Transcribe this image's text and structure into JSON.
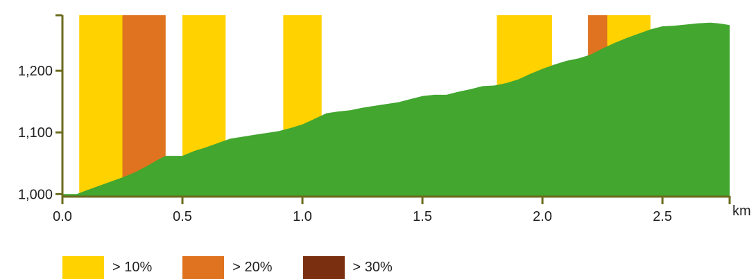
{
  "chart_data": {
    "type": "area",
    "x_unit": "km",
    "x_ticks": [
      0.0,
      0.5,
      1.0,
      1.5,
      2.0,
      2.5
    ],
    "x_tick_labels": [
      "0.0",
      "0.5",
      "1.0",
      "1.5",
      "2.0",
      "2.5"
    ],
    "y_ticks": [
      1000,
      1100,
      1200
    ],
    "y_tick_labels": [
      "1,000",
      "1,100",
      "1,200"
    ],
    "xlim": [
      0,
      2.78
    ],
    "ylim": [
      997,
      1290
    ],
    "elevation": {
      "x": [
        0.0,
        0.06,
        0.1,
        0.15,
        0.2,
        0.25,
        0.3,
        0.35,
        0.4,
        0.43,
        0.5,
        0.55,
        0.6,
        0.65,
        0.7,
        0.75,
        0.8,
        0.85,
        0.9,
        0.95,
        1.0,
        1.05,
        1.1,
        1.15,
        1.2,
        1.25,
        1.3,
        1.35,
        1.4,
        1.45,
        1.5,
        1.55,
        1.6,
        1.65,
        1.7,
        1.75,
        1.8,
        1.85,
        1.9,
        1.95,
        2.0,
        2.05,
        2.1,
        2.15,
        2.2,
        2.25,
        2.3,
        2.35,
        2.4,
        2.45,
        2.5,
        2.55,
        2.6,
        2.65,
        2.7,
        2.73,
        2.75,
        2.78
      ],
      "y": [
        1000,
        1000,
        1006,
        1013,
        1020,
        1027,
        1035,
        1045,
        1056,
        1062,
        1062,
        1070,
        1076,
        1083,
        1090,
        1093,
        1096,
        1099,
        1102,
        1107,
        1113,
        1122,
        1131,
        1134,
        1136,
        1140,
        1143,
        1146,
        1149,
        1154,
        1159,
        1161,
        1161,
        1166,
        1170,
        1175,
        1176,
        1180,
        1186,
        1195,
        1203,
        1210,
        1216,
        1220,
        1226,
        1236,
        1245,
        1253,
        1260,
        1267,
        1272,
        1273,
        1275,
        1277,
        1278,
        1277,
        1276,
        1274
      ]
    },
    "grade_segments": [
      {
        "from": 0.07,
        "to": 0.25,
        "level": "> 10%"
      },
      {
        "from": 0.25,
        "to": 0.43,
        "level": "> 20%"
      },
      {
        "from": 0.5,
        "to": 0.68,
        "level": "> 10%"
      },
      {
        "from": 0.92,
        "to": 1.08,
        "level": "> 10%"
      },
      {
        "from": 1.81,
        "to": 2.04,
        "level": "> 10%"
      },
      {
        "from": 2.19,
        "to": 2.27,
        "level": "> 20%"
      },
      {
        "from": 2.27,
        "to": 2.45,
        "level": "> 10%"
      }
    ],
    "legend": [
      {
        "label": "> 10%",
        "color": "#FFD200"
      },
      {
        "label": "> 20%",
        "color": "#E0731F"
      },
      {
        "label": "> 30%",
        "color": "#7A3010"
      }
    ],
    "area_color": "#42A62F",
    "axis_color": "#6B6B1E",
    "grid": false,
    "legend_position": "bottom-left"
  }
}
